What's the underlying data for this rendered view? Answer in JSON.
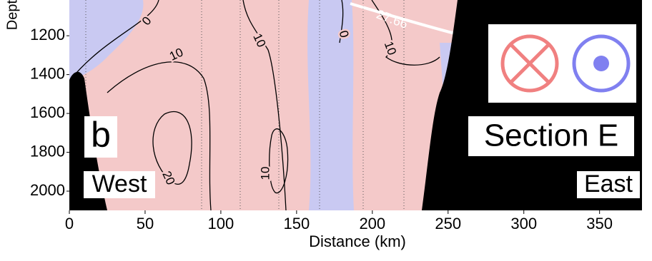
{
  "chart_data": {
    "type": "contour",
    "panel_label": "b",
    "section_title": "Section E",
    "west_label": "West",
    "east_label": "East",
    "x_label": "Distance (km)",
    "y_label": "Dept",
    "xlim": [
      0,
      378
    ],
    "xticks": [
      0,
      50,
      100,
      150,
      200,
      250,
      300,
      350
    ],
    "ylim": [
      1016,
      2099
    ],
    "yticks": [
      1200,
      1400,
      1600,
      1800,
      2000
    ],
    "contour_levels": [
      0,
      10,
      10,
      20,
      10,
      0,
      10
    ],
    "isopycnal": 27.66,
    "positive_color": "#f4c9c9",
    "negative_color": "#c9c9f2"
  }
}
